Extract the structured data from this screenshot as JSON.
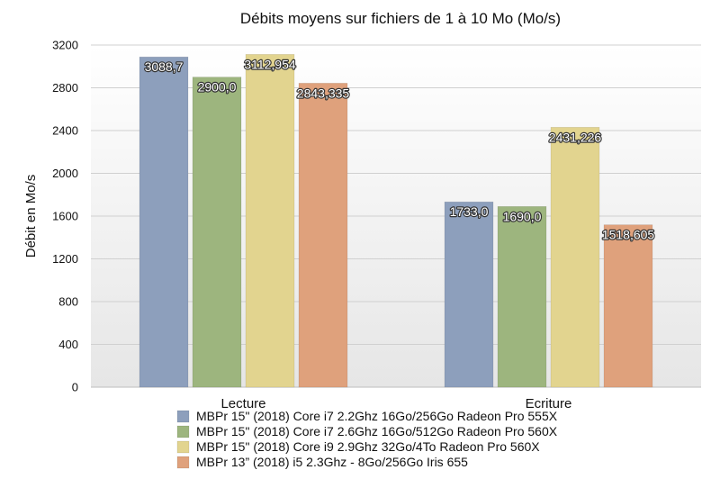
{
  "chart_data": {
    "type": "bar",
    "title": "Débits moyens sur fichiers de 1 à 10 Mo (Mo/s)",
    "xlabel": "",
    "ylabel": "Débit en Mo/s",
    "ylim": [
      0,
      3200
    ],
    "yticks": [
      0,
      400,
      800,
      1200,
      1600,
      2000,
      2400,
      2800,
      3200
    ],
    "grid": true,
    "legend_position": "bottom",
    "categories": [
      "Lecture",
      "Ecriture"
    ],
    "series": [
      {
        "name": "MBPr 15\" (2018) Core i7 2.2Ghz 16Go/256Go Radeon Pro 555X",
        "color": "#8d9fbc",
        "values": [
          3088.7,
          1733.0
        ],
        "labels": [
          "3088,7",
          "1733,0"
        ]
      },
      {
        "name": "MBPr 15\" (2018) Core i7 2.6Ghz 16Go/512Go Radeon Pro 560X",
        "color": "#9db57e",
        "values": [
          2900.0,
          1690.0
        ],
        "labels": [
          "2900,0",
          "1690,0"
        ]
      },
      {
        "name": "MBPr 15\" (2018) Core i9 2.9Ghz 32Go/4To Radeon Pro 560X",
        "color": "#e2d48f",
        "values": [
          3112.954,
          2431.226
        ],
        "labels": [
          "3112,954",
          "2431,226"
        ]
      },
      {
        "name": "MBPr 13” (2018) i5 2.3Ghz - 8Go/256Go Iris 655",
        "color": "#dfa17c",
        "values": [
          2843.335,
          1518.605
        ],
        "labels": [
          "2843,335",
          "1518,605"
        ]
      }
    ]
  }
}
